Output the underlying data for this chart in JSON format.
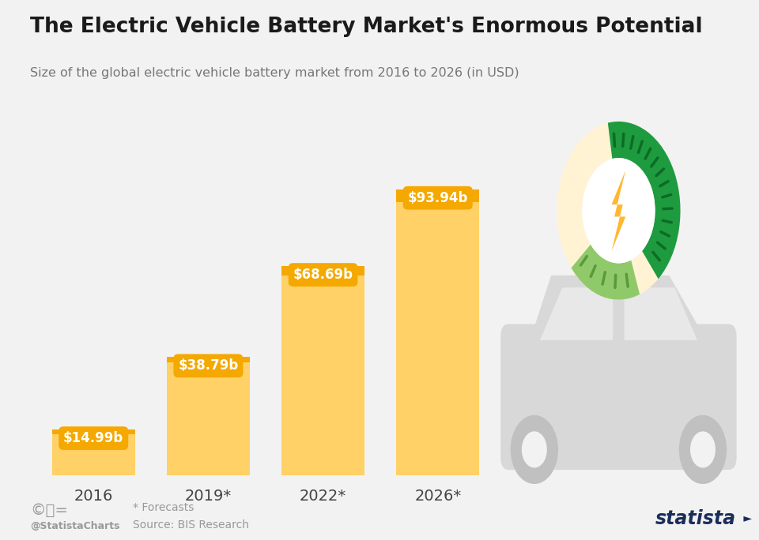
{
  "title": "The Electric Vehicle Battery Market's Enormous Potential",
  "subtitle": "Size of the global electric vehicle battery market from 2016 to 2026 (in USD)",
  "categories": [
    "2016",
    "2019*",
    "2022*",
    "2026*"
  ],
  "values": [
    14.99,
    38.79,
    68.69,
    93.94
  ],
  "labels": [
    "$14.99b",
    "$38.79b",
    "$68.69b",
    "$93.94b"
  ],
  "bar_color": "#FFD166",
  "bar_top_color": "#F4A800",
  "background_color": "#F2F2F2",
  "title_color": "#1a1a1a",
  "subtitle_color": "#777777",
  "label_bg_color": "#F4A800",
  "label_text_color": "#FFFFFF",
  "axis_label_color": "#444444",
  "footer_color": "#999999",
  "footer_left1": "* Forecasts",
  "footer_left2": "Source: BIS Research",
  "footer_cc": "@StatistaCharts",
  "footer_right": "statista",
  "ylim": [
    0,
    110
  ],
  "bar_width": 0.72
}
